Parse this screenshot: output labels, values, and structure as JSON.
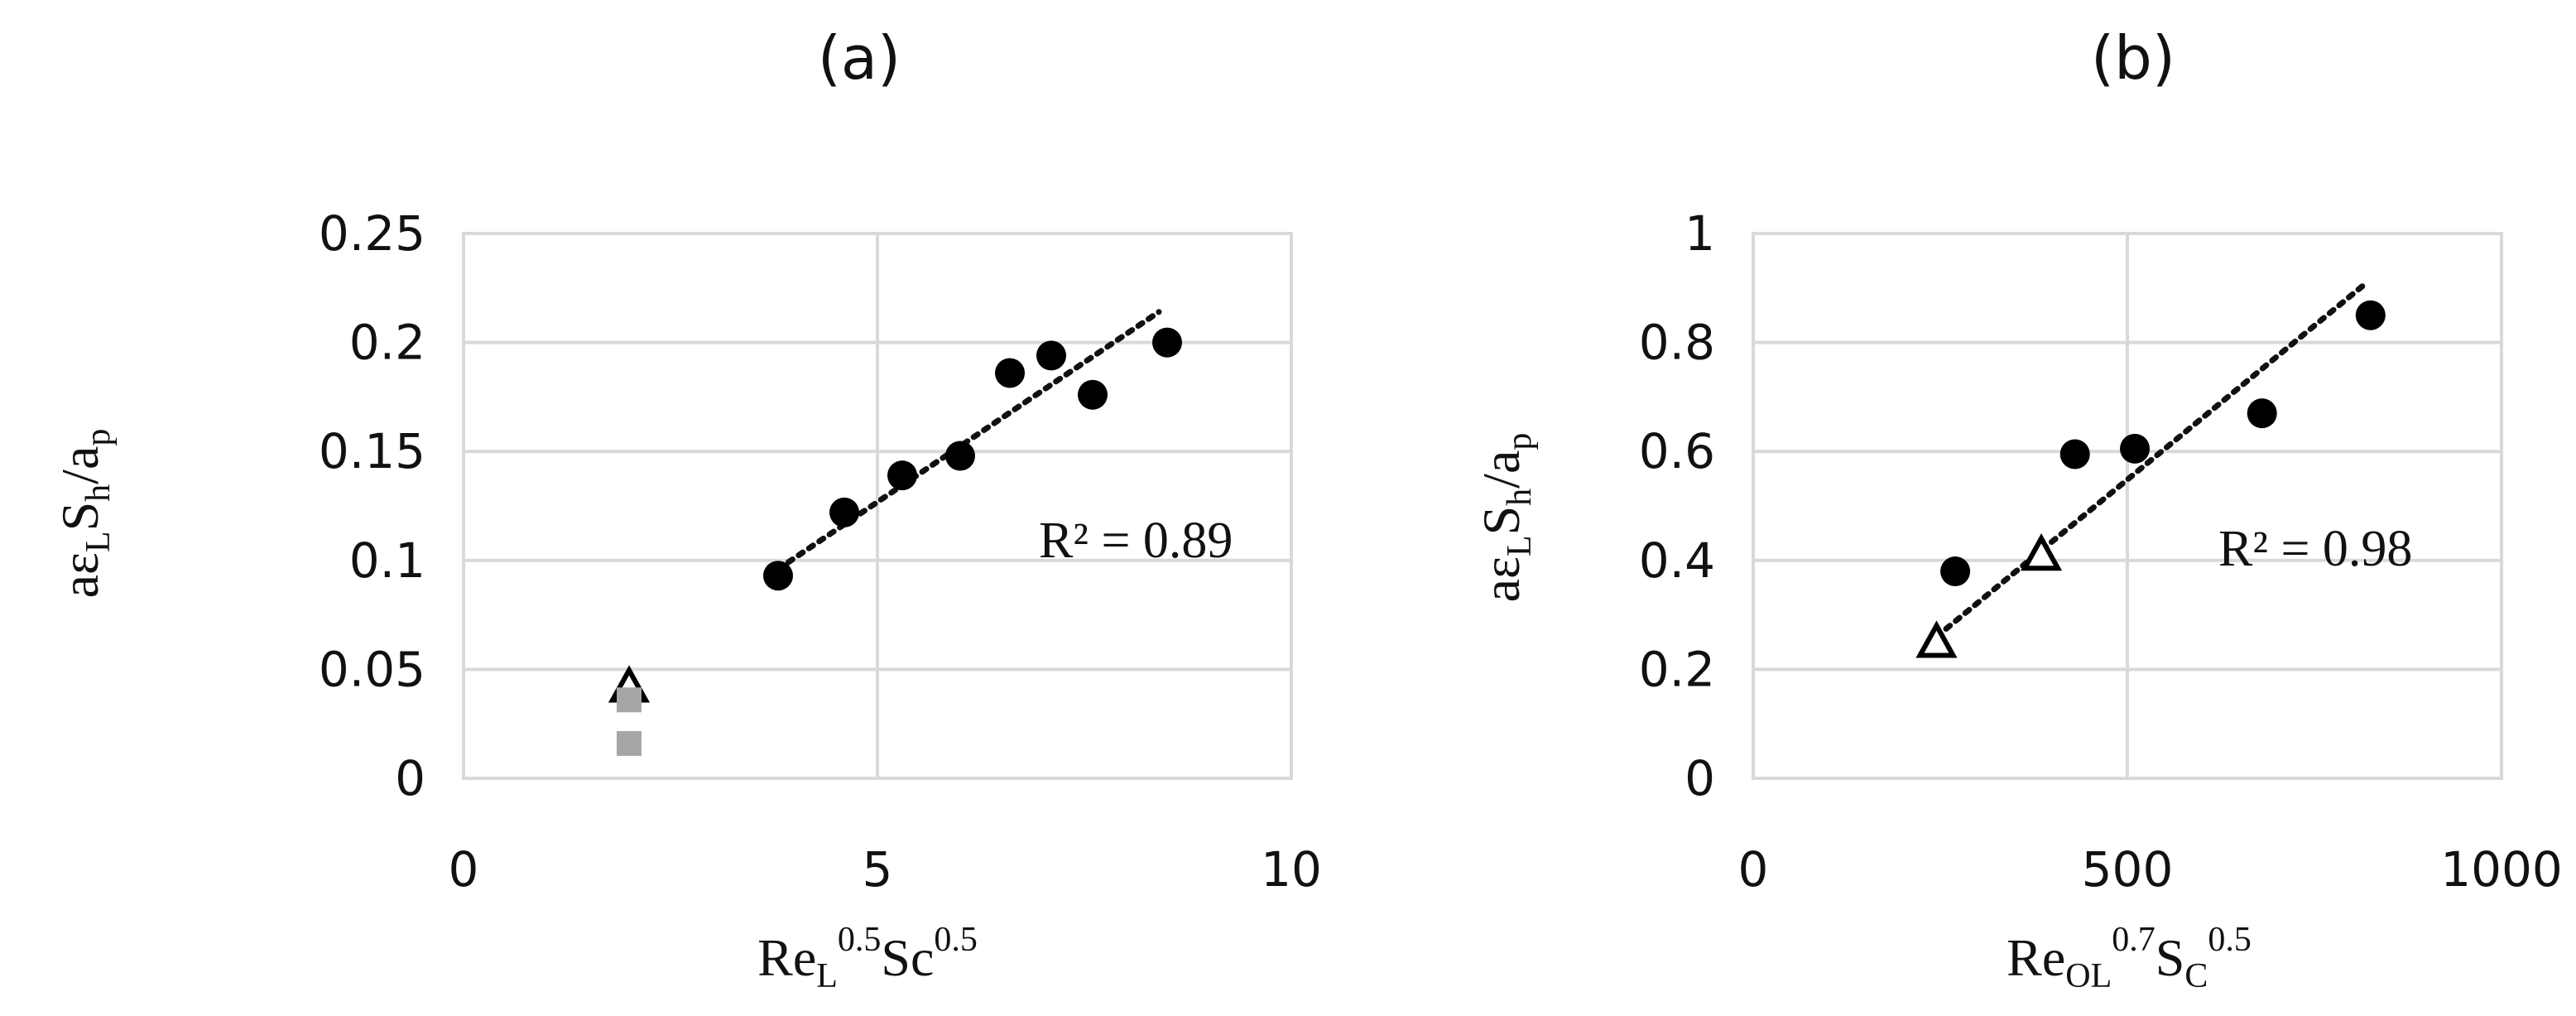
{
  "chart_data": [
    {
      "panel_label": "(a)",
      "type": "scatter",
      "xlim": [
        0,
        10
      ],
      "ylim": [
        0,
        0.25
      ],
      "x_ticks": [
        "0",
        "5",
        "10"
      ],
      "y_ticks": [
        "0",
        "0.05",
        "0.1",
        "0.15",
        "0.2",
        "0.25"
      ],
      "xlabel": {
        "base": "Re",
        "sub": "L",
        "sup": "0.5",
        "base2": "Sc",
        "sup2": "0.5"
      },
      "ylabel": {
        "p1": "aε",
        "s1": "L",
        "p2": "S",
        "s2": "h",
        "p3": "/a",
        "s3": "p"
      },
      "grid": "both",
      "series": [
        {
          "marker": "filled-circle",
          "color": "#000000",
          "x": [
            3.8,
            4.6,
            5.3,
            6.0,
            6.6,
            7.1,
            7.6,
            8.5
          ],
          "y": [
            0.093,
            0.122,
            0.139,
            0.148,
            0.186,
            0.194,
            0.176,
            0.2
          ]
        },
        {
          "marker": "open-triangle",
          "color": "#000000",
          "x": [
            2.0
          ],
          "y": [
            0.042
          ]
        },
        {
          "marker": "grey-square",
          "color": "#a6a6a6",
          "x": [
            2.0,
            2.0
          ],
          "y": [
            0.036,
            0.016
          ]
        }
      ],
      "trendline": {
        "x": [
          3.8,
          8.4
        ],
        "y": [
          0.096,
          0.214
        ]
      },
      "r2_label": "R² = 0.89"
    },
    {
      "panel_label": "(b)",
      "type": "scatter",
      "xlim": [
        0,
        1000
      ],
      "ylim": [
        0,
        1
      ],
      "x_ticks": [
        "0",
        "500",
        "1000"
      ],
      "y_ticks": [
        "0",
        "0.2",
        "0.4",
        "0.6",
        "0.8",
        "1"
      ],
      "xlabel": {
        "base": "Re",
        "sub": "OL",
        "sup": "0.7",
        "base2": "S",
        "sub2": "C",
        "sup2": "0.5"
      },
      "ylabel": {
        "p1": "aε",
        "s1": "L",
        "p2": "S",
        "s2": "h",
        "p3": "/a",
        "s3": "p"
      },
      "grid": "both",
      "series": [
        {
          "marker": "filled-circle",
          "color": "#000000",
          "x": [
            270,
            430,
            510,
            680,
            825
          ],
          "y": [
            0.38,
            0.595,
            0.605,
            0.67,
            0.85
          ]
        },
        {
          "marker": "open-triangle",
          "color": "#000000",
          "x": [
            245,
            385
          ],
          "y": [
            0.25,
            0.41
          ]
        }
      ],
      "trendline": {
        "x": [
          245,
          820
        ],
        "y": [
          0.26,
          0.91
        ]
      },
      "r2_label": "R² = 0.98"
    }
  ]
}
